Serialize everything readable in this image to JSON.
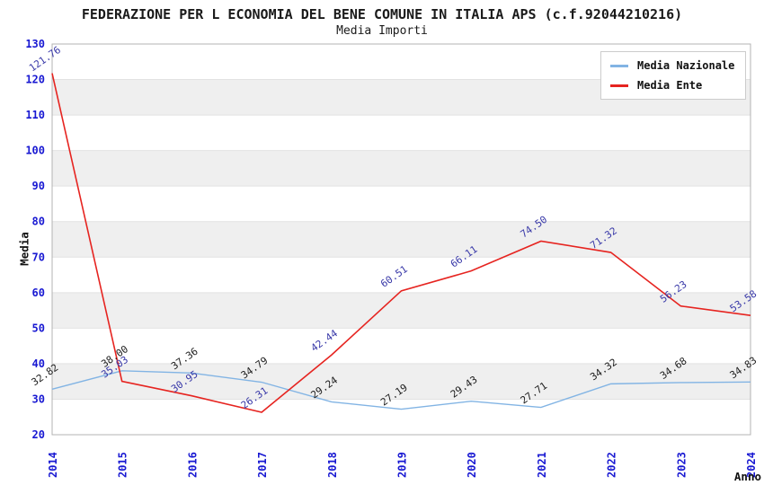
{
  "header": {
    "title": "FEDERAZIONE PER L ECONOMIA DEL BENE COMUNE IN ITALIA APS (c.f.92044210216)",
    "subtitle": "Media Importi"
  },
  "chart_data": {
    "type": "line",
    "title": "FEDERAZIONE PER L ECONOMIA DEL BENE COMUNE IN ITALIA APS (c.f.92044210216)",
    "subtitle": "Media Importi",
    "xlabel": "Anno",
    "ylabel": "Media",
    "x": [
      "2014",
      "2015",
      "2016",
      "2017",
      "2018",
      "2019",
      "2020",
      "2021",
      "2022",
      "2023",
      "2024"
    ],
    "ylim": [
      20,
      130
    ],
    "ytick_step": 10,
    "yticks": [
      20,
      30,
      40,
      50,
      60,
      70,
      80,
      90,
      100,
      110,
      120,
      130
    ],
    "grid": "horizontal-bands-alternating",
    "legend_position": "top-right",
    "series": [
      {
        "name": "Media Nazionale",
        "color": "#82b4e4",
        "label_color": "#1c1c1c",
        "values": [
          32.82,
          38.0,
          37.36,
          34.79,
          29.24,
          27.19,
          29.43,
          27.71,
          34.32,
          34.68,
          34.83
        ]
      },
      {
        "name": "Media Ente",
        "color": "#e62420",
        "label_color": "#3838a8",
        "values": [
          121.76,
          35.03,
          30.95,
          26.31,
          42.44,
          60.51,
          66.11,
          74.5,
          71.32,
          56.23,
          53.58
        ]
      }
    ],
    "colors": {
      "band": "#efefef",
      "gridline": "#e2e2e2",
      "border": "#b3b3b3",
      "tick": "#1818d2",
      "axis_title": "#111111",
      "background": "#ffffff"
    }
  }
}
